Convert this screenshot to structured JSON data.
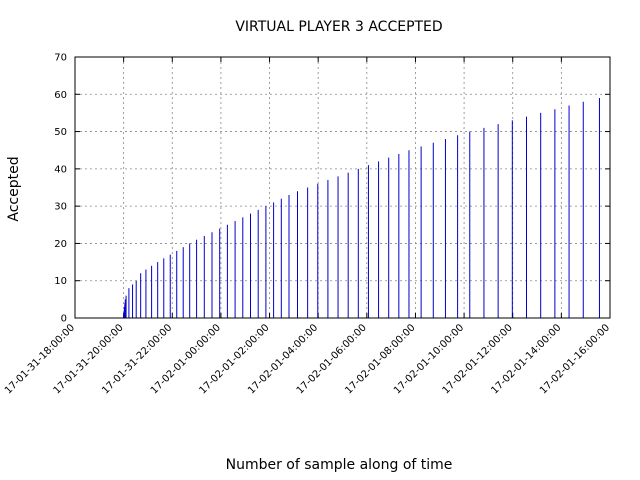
{
  "chart_data": {
    "type": "bar",
    "title": "VIRTUAL PLAYER 3 ACCEPTED",
    "xlabel": "Number of sample along of time",
    "ylabel": "Accepted",
    "x_unit": "hours",
    "xlim": [
      "17-01-31-18:00:00",
      "17-02-01-16:00:00"
    ],
    "ylim": [
      0,
      70
    ],
    "grid": true,
    "bar_color": "#0000cc",
    "yticks": [
      0,
      10,
      20,
      30,
      40,
      50,
      60,
      70
    ],
    "xticks": [
      "17-01-31-18:00:00",
      "17-01-31-20:00:00",
      "17-01-31-22:00:00",
      "17-02-01-00:00:00",
      "17-02-01-02:00:00",
      "17-02-01-04:00:00",
      "17-02-01-06:00:00",
      "17-02-01-08:00:00",
      "17-02-01-10:00:00",
      "17-02-01-12:00:00",
      "17-02-01-14:00:00",
      "17-02-01-16:00:00"
    ],
    "x": [
      "17-01-31-20:00:00",
      "17-01-31-20:01:00",
      "17-01-31-20:02:00",
      "17-01-31-20:03:00",
      "17-01-31-20:04:00",
      "17-01-31-20:06:00",
      "17-01-31-20:13:00",
      "17-01-31-20:22:00",
      "17-01-31-20:31:00",
      "17-01-31-20:42:00",
      "17-01-31-20:55:00",
      "17-01-31-21:09:00",
      "17-01-31-21:24:00",
      "17-01-31-21:39:00",
      "17-01-31-21:55:00",
      "17-01-31-22:11:00",
      "17-01-31-22:27:00",
      "17-01-31-22:43:00",
      "17-01-31-23:00:00",
      "17-01-31-23:19:00",
      "17-01-31-23:38:00",
      "17-01-31-23:57:00",
      "17-02-01-00:16:00",
      "17-02-01-00:35:00",
      "17-02-01-00:54:00",
      "17-02-01-01:13:00",
      "17-02-01-01:32:00",
      "17-02-01-01:51:00",
      "17-02-01-02:10:00",
      "17-02-01-02:29:00",
      "17-02-01-02:48:00",
      "17-02-01-03:09:00",
      "17-02-01-03:34:00",
      "17-02-01-03:59:00",
      "17-02-01-04:24:00",
      "17-02-01-04:49:00",
      "17-02-01-05:14:00",
      "17-02-01-05:39:00",
      "17-02-01-06:04:00",
      "17-02-01-06:29:00",
      "17-02-01-06:54:00",
      "17-02-01-07:19:00",
      "17-02-01-07:44:00",
      "17-02-01-08:14:00",
      "17-02-01-08:44:00",
      "17-02-01-09:14:00",
      "17-02-01-09:44:00",
      "17-02-01-10:14:00",
      "17-02-01-10:49:00",
      "17-02-01-11:24:00",
      "17-02-01-11:59:00",
      "17-02-01-12:34:00",
      "17-02-01-13:09:00",
      "17-02-01-13:44:00",
      "17-02-01-14:19:00",
      "17-02-01-14:54:00",
      "17-02-01-15:34:00"
    ],
    "values": [
      1,
      2,
      3,
      4,
      5,
      6,
      8,
      9,
      10,
      12,
      13,
      14,
      15,
      16,
      17,
      18,
      19,
      20,
      21,
      22,
      23,
      24,
      25,
      26,
      27,
      28,
      29,
      30,
      31,
      32,
      33,
      34,
      35,
      36,
      37,
      38,
      39,
      40,
      41,
      42,
      43,
      44,
      45,
      46,
      47,
      48,
      49,
      50,
      51,
      52,
      53,
      54,
      55,
      56,
      57,
      58,
      59
    ]
  }
}
